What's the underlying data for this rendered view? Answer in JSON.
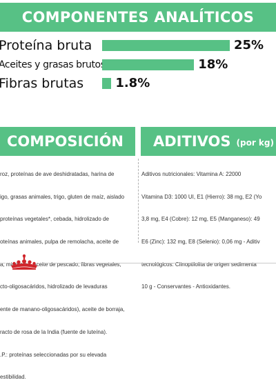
{
  "analiticos": {
    "title": "COMPONENTES ANALÍTICOS",
    "items": [
      {
        "label": "Proteína bruta",
        "value": "25%",
        "percent": 25
      },
      {
        "label": "Aceites y grasas brutos",
        "value": "18%",
        "percent": 18
      },
      {
        "label": "Fibras brutas",
        "value": "1.8%",
        "percent": 1.8
      }
    ]
  },
  "composicion": {
    "title": "COMPOSICIÓN",
    "lines": [
      "roz, proteínas de ave deshidratadas, harina de",
      "igo, grasas animales, trigo, gluten de maíz, aislado",
      "proteínas vegetales*, cebada, hidrolizado de",
      "oteínas animales, pulpa de remolacha, aceite de",
      "a, minerales, aceite de pescado, fibras vegetales,",
      "cto-oligosacáridos, hidrolizado de levaduras",
      "ente de manano-oligosacáridos), aceite de borraja,",
      "racto de rosa de la India (fuente de luteína).",
      ".P.: proteínas seleccionadas por su elevada",
      "estibilidad."
    ]
  },
  "aditivos": {
    "title": "ADITIVOS",
    "unit": "(por kg)",
    "lines": [
      "Aditivos nutricionales: Vitamina A: 22000",
      "Vitamina D3: 1000 UI, E1 (Hierro): 38 mg, E2 (Yo",
      "3,8 mg, E4 (Cobre): 12 mg, E5 (Manganeso): 49",
      "E6 (Zinc): 132 mg, E8 (Selenio): 0,06 mg - Aditiv",
      "tecnológicos: Clinoptilolita de origen sedimenta",
      "10 g - Conservantes - Antioxidantes."
    ]
  },
  "colors": {
    "accent": "#57c185",
    "logo": "#d0252b"
  },
  "footer": {
    "logo_icon": "crown-icon"
  }
}
